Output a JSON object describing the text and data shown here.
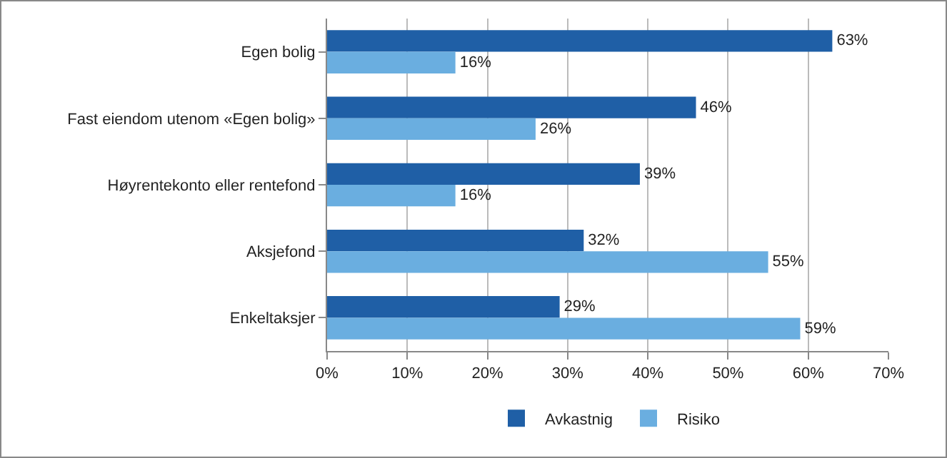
{
  "chart_data": {
    "type": "bar",
    "orientation": "horizontal",
    "categories": [
      "Egen bolig",
      "Fast eiendom utenom «Egen bolig»",
      "Høyrentekonto eller rentefond",
      "Aksjefond",
      "Enkeltaksjer"
    ],
    "series": [
      {
        "name": "Avkastnig",
        "color": "#1f5fa6",
        "values": [
          63,
          46,
          39,
          32,
          29
        ],
        "value_labels": [
          "63%",
          "46%",
          "39%",
          "32%",
          "29%"
        ]
      },
      {
        "name": "Risiko",
        "color": "#6aaee0",
        "values": [
          16,
          26,
          16,
          55,
          59
        ],
        "value_labels": [
          "16%",
          "26%",
          "16%",
          "55%",
          "59%"
        ]
      }
    ],
    "xlim": [
      0,
      70
    ],
    "xticks": [
      {
        "value": 0,
        "label": "0%"
      },
      {
        "value": 10,
        "label": "10%"
      },
      {
        "value": 20,
        "label": "20%"
      },
      {
        "value": 30,
        "label": "30%"
      },
      {
        "value": 40,
        "label": "40%"
      },
      {
        "value": 50,
        "label": "50%"
      },
      {
        "value": 60,
        "label": "60%"
      },
      {
        "value": 70,
        "label": "70%"
      }
    ],
    "grid": "x",
    "legend": "bottom"
  }
}
